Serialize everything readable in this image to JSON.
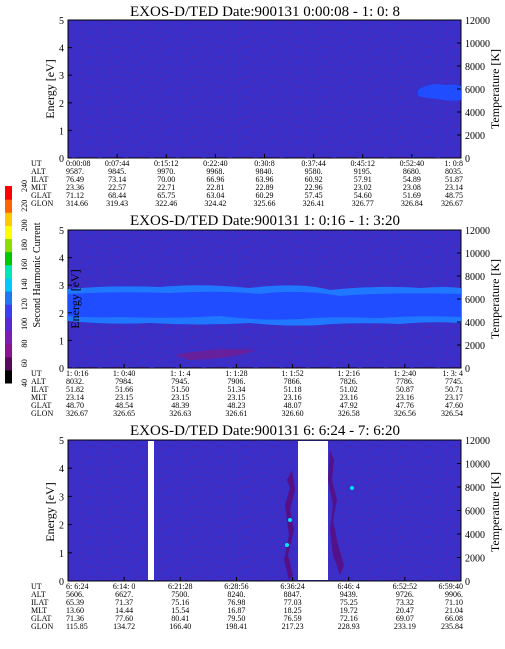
{
  "chart_data": [
    {
      "type": "heatmap",
      "title": "EXOS-D/TED   Date:900131  0:00:08 - 1: 0: 8",
      "ylabel": "Energy [eV]",
      "y2label": "Temperature [K]",
      "ylim": [
        0,
        5
      ],
      "y2lim": [
        0,
        12000
      ],
      "yticks": [
        "0",
        "1",
        "2",
        "3",
        "4",
        "5"
      ],
      "y2ticks": [
        "0",
        "2000",
        "4000",
        "6000",
        "8000",
        "10000",
        "12000"
      ],
      "grid": false,
      "table": {
        "row_labels": [
          "UT",
          "ALT",
          "ILAT",
          "MLT",
          "GLAT",
          "GLON"
        ],
        "columns": [
          [
            "0:00:08",
            "9587.",
            "76.49",
            "23.36",
            "71.12",
            "314.66"
          ],
          [
            "0:07:44",
            "9845.",
            "73.14",
            "22.57",
            "68.44",
            "319.43"
          ],
          [
            "0:15:12",
            "9970.",
            "70.00",
            "22.71",
            "65.75",
            "322.46"
          ],
          [
            "0:22:40",
            "9968.",
            "66.96",
            "22.81",
            "63.04",
            "324.42"
          ],
          [
            "0:30:8",
            "9840.",
            "63.96",
            "22.89",
            "60.29",
            "325.66"
          ],
          [
            "0:37:44",
            "9580.",
            "60.92",
            "22.96",
            "57.45",
            "326.41"
          ],
          [
            "0:45:12",
            "9195.",
            "57.91",
            "23.02",
            "54.60",
            "326.77"
          ],
          [
            "0:52:40",
            "8680.",
            "54.89",
            "23.08",
            "51.69",
            "326.84"
          ],
          [
            "1: 0:8",
            "8035.",
            "51.87",
            "23.14",
            "48.75",
            "326.67"
          ]
        ]
      }
    },
    {
      "type": "heatmap",
      "title": "EXOS-D/TED   Date:900131  1: 0:16 - 1: 3:20",
      "ylabel": "Energy [eV]",
      "y2label": "Temperature [K]",
      "ylim": [
        0,
        5
      ],
      "y2lim": [
        0,
        12000
      ],
      "yticks": [
        "0",
        "1",
        "2",
        "3",
        "4",
        "5"
      ],
      "y2ticks": [
        "0",
        "2000",
        "4000",
        "6000",
        "8000",
        "10000",
        "12000"
      ],
      "grid": false,
      "table": {
        "row_labels": [
          "UT",
          "ALT",
          "ILAT",
          "MLT",
          "GLAT",
          "GLON"
        ],
        "columns": [
          [
            "1: 0:16",
            "8032.",
            "51.82",
            "23.14",
            "48.70",
            "326.67"
          ],
          [
            "1: 0:40",
            "7984.",
            "51.66",
            "23.15",
            "48.54",
            "326.65"
          ],
          [
            "1: 1: 4",
            "7945.",
            "51.50",
            "23.15",
            "48.39",
            "326.63"
          ],
          [
            "1: 1:28",
            "7906.",
            "51.34",
            "23.15",
            "48.23",
            "326.61"
          ],
          [
            "1: 1:52",
            "7866.",
            "51.18",
            "23.16",
            "48.07",
            "326.60"
          ],
          [
            "1: 2:16",
            "7826.",
            "51.02",
            "23.16",
            "47.92",
            "326.58"
          ],
          [
            "1: 2:40",
            "7786.",
            "50.87",
            "23.16",
            "47.76",
            "326.56"
          ],
          [
            "1: 3: 4",
            "7745.",
            "50.71",
            "23.17",
            "47.60",
            "326.54"
          ]
        ]
      }
    },
    {
      "type": "heatmap",
      "title": "EXOS-D/TED   Date:900131  6: 6:24 - 7: 6:20",
      "ylabel": "Energy [eV]",
      "y2label": "Temperature [K]",
      "ylim": [
        0,
        5
      ],
      "y2lim": [
        0,
        12000
      ],
      "yticks": [
        "0",
        "1",
        "2",
        "3",
        "4",
        "5"
      ],
      "y2ticks": [
        "0",
        "2000",
        "4000",
        "6000",
        "8000",
        "10000",
        "12000"
      ],
      "grid": false,
      "table": {
        "row_labels": [
          "UT",
          "ALT",
          "ILAT",
          "MLT",
          "GLAT",
          "GLON"
        ],
        "columns": [
          [
            "6: 6:24",
            "5606.",
            "65.39",
            "13.60",
            "71.36",
            "115.85"
          ],
          [
            "6:14: 0",
            "6627.",
            "71.37",
            "14.44",
            "77.60",
            "134.72"
          ],
          [
            "6:21:28",
            "7500.",
            "75.16",
            "15.54",
            "80.41",
            "166.40"
          ],
          [
            "6:28:56",
            "8240.",
            "76.98",
            "16.87",
            "79.50",
            "198.41"
          ],
          [
            "6:36:24",
            "8847.",
            "77.03",
            "18.25",
            "76.59",
            "217.23"
          ],
          [
            "6:46: 4",
            "9439.",
            "75.25",
            "19.72",
            "72.16",
            "228.93"
          ],
          [
            "6:52:52",
            "9726.",
            "73.32",
            "20.47",
            "69.07",
            "233.19"
          ],
          [
            "6:59:40",
            "9906.",
            "71.10",
            "21.04",
            "66.08",
            "235.84"
          ]
        ]
      }
    }
  ],
  "colorbar": {
    "label": "Second Harmonic Current",
    "ticks": [
      "40",
      "60",
      "80",
      "100",
      "120",
      "140",
      "160",
      "180",
      "200",
      "220",
      "240"
    ],
    "colors": [
      "#000000",
      "#5a0a5a",
      "#8c1490",
      "#7a1eb4",
      "#5a28d2",
      "#3c3cf0",
      "#1e78f0",
      "#00c8ff",
      "#00e6b4",
      "#00c800",
      "#8cdc00",
      "#ffff00",
      "#ffc800",
      "#ff6400",
      "#ff0000"
    ]
  },
  "colors": {
    "field": "#3a2fc8",
    "band": "#1f4dff",
    "band_edge": "#1f78ff",
    "speckle": "#7a1a8a",
    "gap": "#ffffff"
  }
}
